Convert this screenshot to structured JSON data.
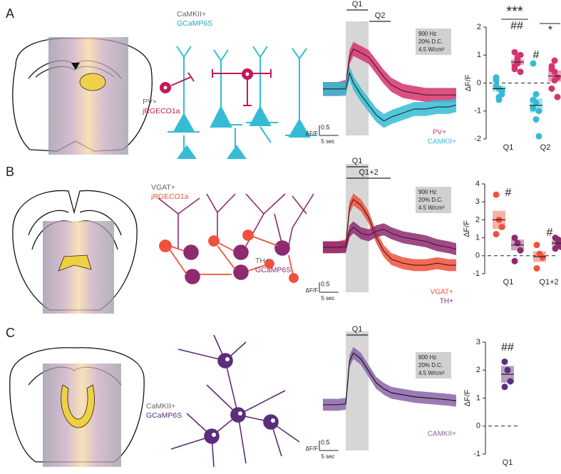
{
  "panels": [
    {
      "letter": "A",
      "labels": [
        "CaMKII+",
        "GCaMP6S",
        "PV+",
        "jRGECO1a"
      ]
    },
    {
      "letter": "B",
      "labels": [
        "VGAT+",
        "jRGECO1a",
        "TH+",
        "GCaMP6S"
      ]
    },
    {
      "letter": "C",
      "labels": [
        "CaMKII+",
        "GCaMP6S"
      ]
    }
  ],
  "chart_data": [
    {
      "type": "trace",
      "stim_params": [
        "900 Hz",
        "20% D.C.",
        "4.5 W/cm²"
      ],
      "periods": [
        {
          "label": "Q1",
          "range": [
            0,
            6
          ]
        },
        {
          "label": "Q2",
          "range": [
            6,
            12
          ]
        }
      ],
      "x": [
        -6,
        -4,
        -2,
        0,
        1,
        2,
        4,
        6,
        8,
        10,
        12,
        15,
        18,
        21,
        24,
        27,
        29
      ],
      "xlim": [
        -6,
        29
      ],
      "ylim": [
        -2.5,
        3.2
      ],
      "scale_bar": {
        "x": {
          "value": 5,
          "label": "5 sec"
        },
        "y": 0.5,
        "y_label": "ΔF/F"
      },
      "series": [
        {
          "name": "PV+",
          "color": "#d6336c",
          "line_color": "#3a1a2a",
          "values": [
            0,
            0,
            0,
            0.1,
            1.6,
            2.0,
            1.8,
            1.6,
            1.1,
            0.6,
            0.2,
            -0.1,
            -0.2,
            -0.3,
            -0.3,
            -0.3,
            -0.3
          ],
          "upper": [
            0.35,
            0.35,
            0.35,
            0.45,
            1.95,
            2.35,
            2.15,
            1.95,
            1.45,
            0.95,
            0.55,
            0.25,
            0.15,
            0.05,
            0.05,
            0.05,
            0.05
          ],
          "lower": [
            -0.35,
            -0.35,
            -0.35,
            -0.25,
            1.25,
            1.65,
            1.45,
            1.25,
            0.75,
            0.25,
            -0.15,
            -0.45,
            -0.55,
            -0.65,
            -0.65,
            -0.65,
            -0.65
          ]
        },
        {
          "name": "CAMKII+",
          "color": "#35bcd4",
          "line_color": "#1a2a30",
          "values": [
            0,
            0,
            0,
            0,
            0.8,
            0.3,
            -0.3,
            -0.8,
            -1.3,
            -1.6,
            -1.4,
            -1.2,
            -1.0,
            -1.0,
            -0.9,
            -0.9,
            -0.8
          ],
          "upper": [
            0.35,
            0.35,
            0.35,
            0.35,
            1.15,
            0.65,
            0.05,
            -0.45,
            -0.95,
            -1.25,
            -1.05,
            -0.85,
            -0.65,
            -0.65,
            -0.55,
            -0.55,
            -0.45
          ],
          "lower": [
            -0.35,
            -0.35,
            -0.35,
            -0.35,
            0.45,
            -0.05,
            -0.65,
            -1.15,
            -1.65,
            -1.95,
            -1.75,
            -1.55,
            -1.35,
            -1.35,
            -1.25,
            -1.25,
            -1.15
          ]
        }
      ]
    },
    {
      "type": "strip",
      "categories": [
        "Q1",
        "Q2"
      ],
      "ylabel": "ΔF/F",
      "ylim": [
        -2,
        2
      ],
      "yticks": [
        -2,
        -1,
        0,
        1,
        2
      ],
      "zero_line": true,
      "series": [
        {
          "color": "#35bcd4",
          "values": [
            [
              -0.1,
              -0.2,
              -0.3,
              0.1,
              -0.5,
              -0.4,
              0.2,
              -0.6
            ],
            [
              0.7,
              -0.7,
              -1.0,
              -0.6,
              -1.3,
              -1.9,
              -0.9,
              -0.4
            ]
          ],
          "mean": [
            -0.2,
            -0.8
          ],
          "sem": [
            0.1,
            0.25
          ]
        },
        {
          "color": "#d6336c",
          "values": [
            [
              0.5,
              0.8,
              1.0,
              0.6,
              0.9,
              0.4,
              1.1,
              0.7
            ],
            [
              0.6,
              0.8,
              0.2,
              -0.2,
              0.4,
              -0.5,
              0.5,
              0.1
            ]
          ],
          "mean": [
            0.75,
            0.25
          ],
          "sem": [
            0.1,
            0.2
          ]
        }
      ],
      "annotations": [
        "***",
        "##",
        "#",
        "*"
      ]
    },
    {
      "type": "trace",
      "stim_params": [
        "900 Hz",
        "20% D.C.",
        "4.5 W/cm²"
      ],
      "periods": [
        {
          "label": "Q1",
          "range": [
            0,
            6
          ]
        },
        {
          "label": "Q1+2",
          "range": [
            0,
            12
          ]
        }
      ],
      "x": [
        -6,
        -4,
        -2,
        0,
        1,
        2,
        4,
        6,
        8,
        10,
        12,
        15,
        18,
        21,
        24,
        27,
        29
      ],
      "xlim": [
        -6,
        29
      ],
      "ylim": [
        -1.9,
        4.0
      ],
      "scale_bar": {
        "x": {
          "value": 5,
          "label": "5 sec"
        },
        "y": 0.5,
        "y_label": "ΔF/F"
      },
      "series": [
        {
          "name": "VGAT+",
          "color": "#f0513c",
          "line_color": "#3a1a14",
          "values": [
            0,
            0,
            0,
            0.1,
            2.0,
            2.4,
            2.1,
            1.5,
            0.5,
            -0.2,
            -0.6,
            -0.8,
            -0.9,
            -0.9,
            -0.8,
            -0.9,
            -0.9
          ],
          "upper": [
            0.3,
            0.3,
            0.3,
            0.4,
            2.3,
            2.7,
            2.4,
            1.8,
            0.8,
            0.1,
            -0.3,
            -0.5,
            -0.6,
            -0.6,
            -0.5,
            -0.6,
            -0.6
          ],
          "lower": [
            -0.3,
            -0.3,
            -0.3,
            -0.2,
            1.7,
            2.1,
            1.8,
            1.2,
            0.2,
            -0.5,
            -0.9,
            -1.1,
            -1.2,
            -1.2,
            -1.1,
            -1.2,
            -1.2
          ]
        },
        {
          "name": "TH+",
          "color": "#8e2a6e",
          "line_color": "#4a1040",
          "values": [
            0,
            0,
            0,
            0,
            0.8,
            1.0,
            0.7,
            0.6,
            0.8,
            0.9,
            0.7,
            0.5,
            0.4,
            0.3,
            0.1,
            0.0,
            -0.1
          ],
          "upper": [
            0.3,
            0.3,
            0.3,
            0.3,
            1.1,
            1.3,
            1.0,
            0.9,
            1.1,
            1.2,
            1.0,
            0.8,
            0.7,
            0.6,
            0.4,
            0.3,
            0.2
          ],
          "lower": [
            -0.3,
            -0.3,
            -0.3,
            -0.3,
            0.5,
            0.7,
            0.4,
            0.3,
            0.5,
            0.6,
            0.4,
            0.2,
            0.1,
            0.0,
            -0.2,
            -0.3,
            -0.4
          ]
        }
      ]
    },
    {
      "type": "strip",
      "categories": [
        "Q1",
        "Q1+2"
      ],
      "ylabel": "ΔF/F",
      "ylim": [
        -1,
        4
      ],
      "yticks": [
        -1,
        0,
        1,
        2,
        3,
        4
      ],
      "zero_line": true,
      "series": [
        {
          "color": "#f0513c",
          "values": [
            [
              3.4,
              2.0,
              1.6,
              1.2
            ],
            [
              0.6,
              0.1,
              -0.1,
              -0.7
            ]
          ],
          "mean": [
            2.0,
            -0.05
          ],
          "sem": [
            0.5,
            0.3
          ]
        },
        {
          "color": "#8e2a6e",
          "values": [
            [
              1.0,
              0.7,
              0.3,
              -0.3
            ],
            [
              1.0,
              0.9,
              0.5,
              0.4,
              0.7
            ]
          ],
          "mean": [
            0.6,
            0.7
          ],
          "sem": [
            0.3,
            0.15
          ]
        }
      ],
      "annotations": [
        "#",
        "#"
      ]
    },
    {
      "type": "trace",
      "stim_params": [
        "900 Hz",
        "20% D.C.",
        "4.5 W/cm²"
      ],
      "periods": [
        {
          "label": "Q1",
          "range": [
            0,
            6
          ]
        }
      ],
      "x": [
        -6,
        -4,
        -2,
        0,
        1,
        2,
        4,
        6,
        8,
        10,
        12,
        15,
        18,
        21,
        24,
        27,
        29
      ],
      "xlim": [
        -6,
        29
      ],
      "ylim": [
        -2.4,
        3.5
      ],
      "scale_bar": {
        "x": {
          "value": 5,
          "label": "5 sec"
        },
        "y": 0.5,
        "y_label": "ΔF/F"
      },
      "series": [
        {
          "name": "CAMKII+",
          "color": "#8a64a8",
          "line_color": "#111111",
          "values": [
            0,
            0,
            0,
            0.05,
            2.2,
            2.6,
            2.3,
            1.7,
            1.1,
            0.8,
            0.6,
            0.5,
            0.4,
            0.35,
            0.3,
            0.25,
            0.2
          ],
          "upper": [
            0.3,
            0.3,
            0.3,
            0.35,
            2.5,
            2.9,
            2.6,
            2.0,
            1.4,
            1.1,
            0.9,
            0.8,
            0.7,
            0.65,
            0.6,
            0.55,
            0.5
          ],
          "lower": [
            -0.3,
            -0.3,
            -0.3,
            -0.25,
            1.9,
            2.3,
            2.0,
            1.4,
            0.8,
            0.5,
            0.3,
            0.2,
            0.1,
            0.05,
            0.0,
            -0.05,
            -0.1
          ]
        }
      ]
    },
    {
      "type": "strip",
      "categories": [
        "Q1"
      ],
      "ylabel": "ΔF/F",
      "ylim": [
        -1,
        3
      ],
      "yticks": [
        -1,
        0,
        1,
        2,
        3
      ],
      "zero_line": true,
      "series": [
        {
          "color": "#5b2d7a",
          "values": [
            [
              2.3,
              2.0,
              1.6,
              1.4
            ]
          ],
          "mean": [
            1.85
          ],
          "sem": [
            0.3
          ]
        }
      ],
      "annotations": [
        "##"
      ]
    }
  ]
}
